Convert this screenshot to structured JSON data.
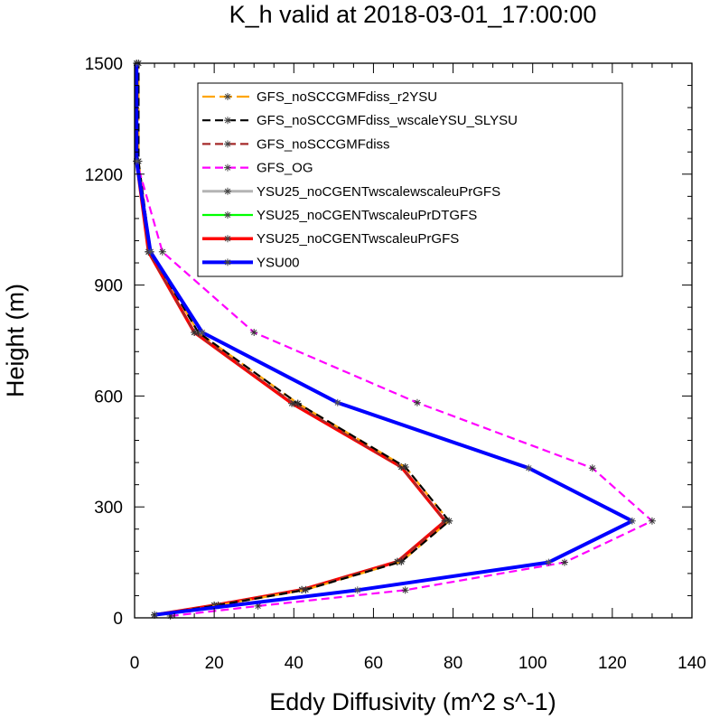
{
  "chart_data": {
    "type": "line",
    "title": "K_h valid at 2018-03-01_17:00:00",
    "xlabel": "Eddy Diffusivity (m^2 s^-1)",
    "ylabel": "Height (m)",
    "xlim": [
      0,
      140
    ],
    "ylim": [
      0,
      1500
    ],
    "xticks": [
      "0",
      "20",
      "40",
      "60",
      "80",
      "100",
      "120",
      "140"
    ],
    "yticks": [
      "0",
      "300",
      "600",
      "900",
      "1200",
      "1500"
    ],
    "grid": false,
    "legend_position": "top-right",
    "series": [
      {
        "name": "GFS_noSCCGMFdiss_r2YSU",
        "color": "#FFA500",
        "dash": "long-dash",
        "points": [
          [
            5.0,
            8
          ],
          [
            21,
            34
          ],
          [
            43,
            76
          ],
          [
            67,
            152
          ],
          [
            79,
            262
          ],
          [
            68,
            408
          ],
          [
            41,
            580
          ],
          [
            16,
            772
          ],
          [
            4,
            990
          ],
          [
            1,
            1235
          ],
          [
            1,
            1500
          ]
        ]
      },
      {
        "name": "GFS_noSCCGMFdiss_wscaleYSU_SLYSU",
        "color": "#000000",
        "dash": "dash",
        "points": [
          [
            5.0,
            8
          ],
          [
            21,
            34
          ],
          [
            43,
            76
          ],
          [
            67,
            152
          ],
          [
            79,
            262
          ],
          [
            68,
            408
          ],
          [
            41,
            580
          ],
          [
            16,
            772
          ],
          [
            4,
            990
          ],
          [
            1,
            1235
          ],
          [
            1,
            1500
          ]
        ]
      },
      {
        "name": "GFS_noSCCGMFdiss",
        "color": "#A52A2A",
        "dash": "dash",
        "points": [
          [
            5.0,
            8
          ],
          [
            20,
            34
          ],
          [
            42,
            76
          ],
          [
            66,
            152
          ],
          [
            78,
            262
          ],
          [
            67,
            408
          ],
          [
            40,
            580
          ],
          [
            15,
            772
          ],
          [
            3.5,
            990
          ],
          [
            0.5,
            1235
          ],
          [
            0.5,
            1500
          ]
        ]
      },
      {
        "name": "GFS_OG",
        "color": "#FF00FF",
        "dash": "dash",
        "points": [
          [
            9,
            5
          ],
          [
            31,
            32
          ],
          [
            68,
            75
          ],
          [
            108,
            150
          ],
          [
            130,
            262
          ],
          [
            115,
            405
          ],
          [
            71,
            582
          ],
          [
            30,
            772
          ],
          [
            7,
            990
          ],
          [
            0.5,
            1235
          ],
          [
            0.5,
            1500
          ]
        ]
      },
      {
        "name": "YSU25_noCGENTwscalewscaleuPrGFS",
        "color": "#B4B4B4",
        "dash": "solid",
        "points": [
          [
            5.0,
            8
          ],
          [
            20,
            34
          ],
          [
            42,
            76
          ],
          [
            66,
            152
          ],
          [
            78,
            262
          ],
          [
            67,
            408
          ],
          [
            39.5,
            580
          ],
          [
            15,
            772
          ],
          [
            3.5,
            990
          ],
          [
            0.5,
            1235
          ],
          [
            0.5,
            1500
          ]
        ]
      },
      {
        "name": "YSU25_noCGENTwscaleuPrDTGFS",
        "color": "#00FF00",
        "dash": "solid",
        "points": [
          [
            5.0,
            8
          ],
          [
            20,
            34
          ],
          [
            42,
            76
          ],
          [
            66,
            152
          ],
          [
            78,
            262
          ],
          [
            67,
            408
          ],
          [
            39.5,
            580
          ],
          [
            15,
            772
          ],
          [
            3.5,
            990
          ],
          [
            0.5,
            1235
          ],
          [
            0.5,
            1500
          ]
        ]
      },
      {
        "name": "YSU25_noCGENTwscaleuPrGFS",
        "color": "#FF0000",
        "dash": "solid",
        "points": [
          [
            5.0,
            8
          ],
          [
            20,
            34
          ],
          [
            42,
            76
          ],
          [
            66,
            152
          ],
          [
            78,
            262
          ],
          [
            67,
            408
          ],
          [
            39.5,
            580
          ],
          [
            15,
            772
          ],
          [
            3.5,
            990
          ],
          [
            0.5,
            1235
          ],
          [
            0.5,
            1500
          ]
        ]
      },
      {
        "name": "YSU00",
        "color": "#0000FF",
        "dash": "solid",
        "points": [
          [
            5,
            8
          ],
          [
            56,
            75
          ],
          [
            104,
            150
          ],
          [
            125,
            262
          ],
          [
            99,
            405
          ],
          [
            51,
            582
          ],
          [
            17,
            772
          ],
          [
            4,
            990
          ],
          [
            0.5,
            1235
          ],
          [
            0.5,
            1500
          ]
        ]
      }
    ]
  }
}
